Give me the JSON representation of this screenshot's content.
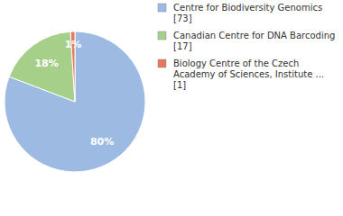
{
  "chart_data": {
    "type": "pie",
    "categories": [
      "Centre for Biodiversity Genomics [73]",
      "Canadian Centre for DNA Barcoding [17]",
      "Biology Centre of the Czech Academy of Sciences, Institute ... [1]"
    ],
    "values": [
      80,
      18,
      1
    ],
    "value_labels": [
      "80%",
      "18%",
      "1%"
    ],
    "colors": [
      "#9dbbe2",
      "#a6cf8a",
      "#e8785c"
    ],
    "data_labels": true,
    "legend": "right"
  }
}
